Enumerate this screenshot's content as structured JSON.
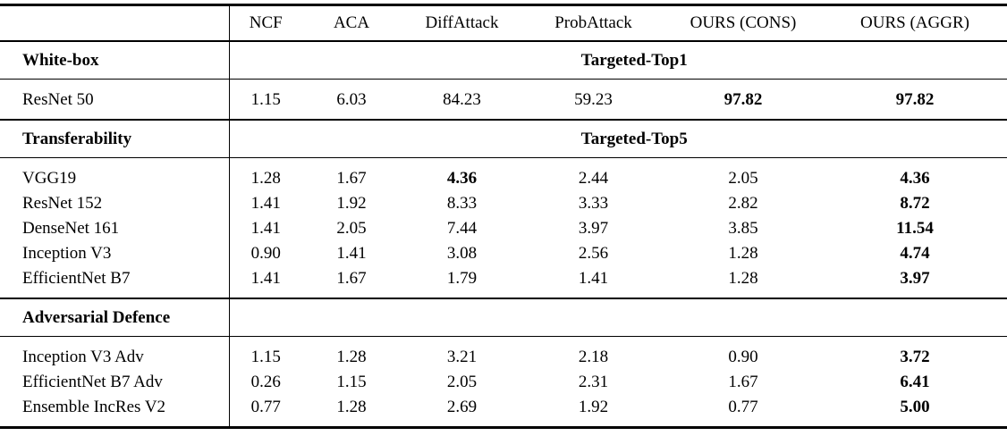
{
  "page": {
    "background_color": "#ffffff",
    "text_color": "#000000",
    "rule_color": "#000000"
  },
  "table": {
    "columns": [
      "",
      "NCF",
      "ACA",
      "DiffAttack",
      "ProbAttack",
      "OURS (CONS)",
      "OURS (AGGR)"
    ],
    "sections": [
      {
        "name": "White-box",
        "metric_label": "Targeted-Top1",
        "rows": [
          {
            "model": "ResNet 50",
            "values": [
              "1.15",
              "6.03",
              "84.23",
              "59.23",
              "97.82",
              "97.82"
            ],
            "bold": [
              4,
              5
            ]
          }
        ]
      },
      {
        "name": "Transferability",
        "metric_label": "Targeted-Top5",
        "rows": [
          {
            "model": "VGG19",
            "values": [
              "1.28",
              "1.67",
              "4.36",
              "2.44",
              "2.05",
              "4.36"
            ],
            "bold": [
              2,
              5
            ]
          },
          {
            "model": "ResNet 152",
            "values": [
              "1.41",
              "1.92",
              "8.33",
              "3.33",
              "2.82",
              "8.72"
            ],
            "bold": [
              5
            ]
          },
          {
            "model": "DenseNet 161",
            "values": [
              "1.41",
              "2.05",
              "7.44",
              "3.97",
              "3.85",
              "11.54"
            ],
            "bold": [
              5
            ]
          },
          {
            "model": "Inception V3",
            "values": [
              "0.90",
              "1.41",
              "3.08",
              "2.56",
              "1.28",
              "4.74"
            ],
            "bold": [
              5
            ]
          },
          {
            "model": "EfficientNet B7",
            "values": [
              "1.41",
              "1.67",
              "1.79",
              "1.41",
              "1.28",
              "3.97"
            ],
            "bold": [
              5
            ]
          }
        ]
      },
      {
        "name": "Adversarial Defence",
        "metric_label": "",
        "rows": [
          {
            "model": "Inception V3 Adv",
            "values": [
              "1.15",
              "1.28",
              "3.21",
              "2.18",
              "0.90",
              "3.72"
            ],
            "bold": [
              5
            ]
          },
          {
            "model": "EfficientNet B7 Adv",
            "values": [
              "0.26",
              "1.15",
              "2.05",
              "2.31",
              "1.67",
              "6.41"
            ],
            "bold": [
              5
            ]
          },
          {
            "model": "Ensemble IncRes V2",
            "values": [
              "0.77",
              "1.28",
              "2.69",
              "1.92",
              "0.77",
              "5.00"
            ],
            "bold": [
              5
            ]
          }
        ]
      }
    ]
  }
}
